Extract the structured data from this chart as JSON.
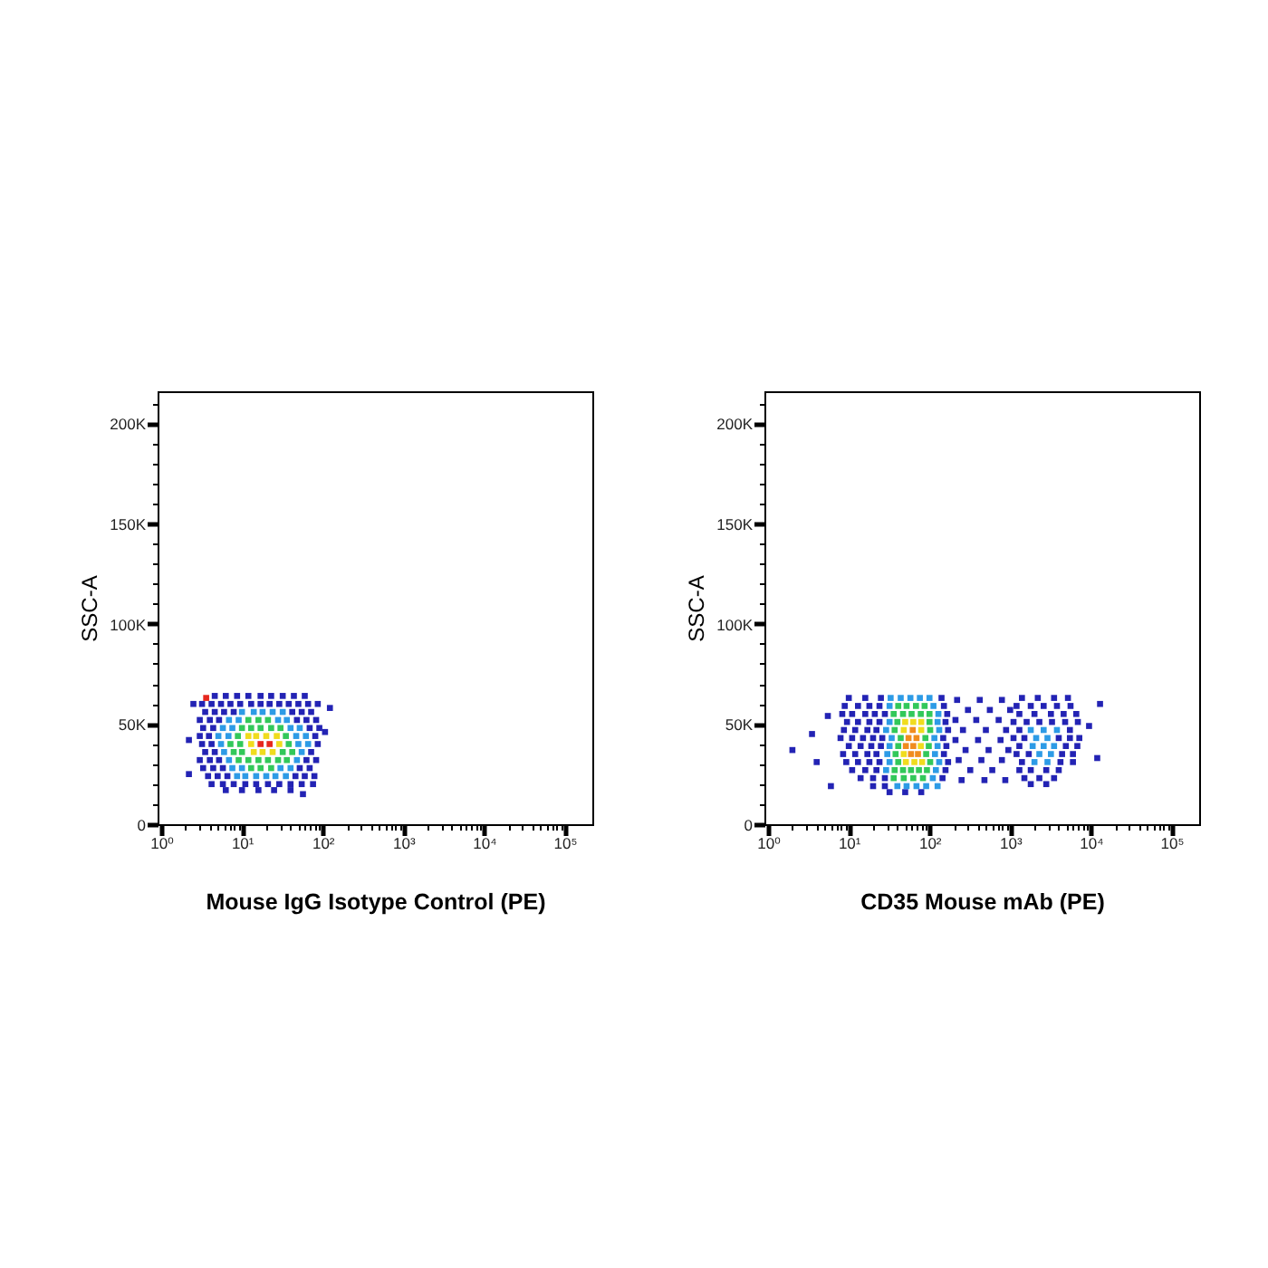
{
  "chart_data": [
    {
      "type": "scatter",
      "xlabel": "Mouse IgG Isotype Control (PE)",
      "ylabel": "SSC-A",
      "log": "x",
      "marker": "square",
      "xlim": [
        0.9,
        220000
      ],
      "ylim": [
        0,
        216000
      ],
      "xticks": [
        {
          "value": 1,
          "label": "10⁰"
        },
        {
          "value": 10,
          "label": "10¹"
        },
        {
          "value": 100,
          "label": "10²"
        },
        {
          "value": 1000,
          "label": "10³"
        },
        {
          "value": 10000,
          "label": "10⁴"
        },
        {
          "value": 100000,
          "label": "10⁵"
        },
        {
          "value": 2,
          "label": null
        },
        {
          "value": 3,
          "label": null
        },
        {
          "value": 4,
          "label": null
        },
        {
          "value": 5,
          "label": null
        },
        {
          "value": 6,
          "label": null
        },
        {
          "value": 7,
          "label": null
        },
        {
          "value": 8,
          "label": null
        },
        {
          "value": 9,
          "label": null
        },
        {
          "value": 20,
          "label": null
        },
        {
          "value": 30,
          "label": null
        },
        {
          "value": 40,
          "label": null
        },
        {
          "value": 50,
          "label": null
        },
        {
          "value": 60,
          "label": null
        },
        {
          "value": 70,
          "label": null
        },
        {
          "value": 80,
          "label": null
        },
        {
          "value": 90,
          "label": null
        },
        {
          "value": 200,
          "label": null
        },
        {
          "value": 300,
          "label": null
        },
        {
          "value": 400,
          "label": null
        },
        {
          "value": 500,
          "label": null
        },
        {
          "value": 600,
          "label": null
        },
        {
          "value": 700,
          "label": null
        },
        {
          "value": 800,
          "label": null
        },
        {
          "value": 900,
          "label": null
        },
        {
          "value": 2000,
          "label": null
        },
        {
          "value": 3000,
          "label": null
        },
        {
          "value": 4000,
          "label": null
        },
        {
          "value": 5000,
          "label": null
        },
        {
          "value": 6000,
          "label": null
        },
        {
          "value": 7000,
          "label": null
        },
        {
          "value": 8000,
          "label": null
        },
        {
          "value": 9000,
          "label": null
        },
        {
          "value": 20000,
          "label": null
        },
        {
          "value": 30000,
          "label": null
        },
        {
          "value": 40000,
          "label": null
        },
        {
          "value": 50000,
          "label": null
        },
        {
          "value": 60000,
          "label": null
        },
        {
          "value": 70000,
          "label": null
        },
        {
          "value": 80000,
          "label": null
        },
        {
          "value": 90000,
          "label": null
        }
      ],
      "yticks": [
        0,
        {
          "value": 50000,
          "label": "50K"
        },
        {
          "value": 100000,
          "label": "100K"
        },
        {
          "value": 150000,
          "label": "150K"
        },
        {
          "value": 200000,
          "label": "200K"
        },
        {
          "value": 10000,
          "label": null
        },
        {
          "value": 20000,
          "label": null
        },
        {
          "value": 30000,
          "label": null
        },
        {
          "value": 40000,
          "label": null
        },
        {
          "value": 60000,
          "label": null
        },
        {
          "value": 70000,
          "label": null
        },
        {
          "value": 80000,
          "label": null
        },
        {
          "value": 90000,
          "label": null
        },
        {
          "value": 110000,
          "label": null
        },
        {
          "value": 120000,
          "label": null
        },
        {
          "value": 130000,
          "label": null
        },
        {
          "value": 140000,
          "label": null
        },
        {
          "value": 160000,
          "label": null
        },
        {
          "value": 170000,
          "label": null
        },
        {
          "value": 180000,
          "label": null
        },
        {
          "value": 190000,
          "label": null
        },
        {
          "value": 210000,
          "label": null
        }
      ],
      "series": [
        {
          "color": "#2323b4",
          "x": [
            4.6,
            6.3,
            8.7,
            12,
            17,
            23,
            32,
            44,
            60,
            3.2,
            4.2,
            5.5,
            7.2,
            9.5,
            13,
            17,
            22,
            29,
            38,
            50,
            66,
            87,
            3.5,
            4.6,
            6.0,
            7.9,
            42,
            55,
            72,
            3.0,
            4.0,
            5.2,
            48,
            63,
            83,
            3.3,
            4.4,
            69,
            91,
            3.0,
            3.9,
            81,
            3.2,
            4.2,
            87,
            3.5,
            4.6,
            72,
            3.0,
            4.0,
            5.2,
            63,
            83,
            3.3,
            4.4,
            5.8,
            52,
            69,
            3.8,
            5.0,
            6.6,
            46,
            60,
            79,
            4.2,
            5.8,
            7.9,
            11,
            15,
            21,
            29,
            40,
            55,
            76,
            6.3,
            10,
            16,
            25,
            40,
            2.2,
            2.2,
            2.5,
            123,
            107,
            57
          ],
          "values": [
            64000,
            64000,
            64000,
            64000,
            64000,
            64000,
            64000,
            64000,
            64000,
            60000,
            60000,
            60000,
            60000,
            60000,
            60000,
            60000,
            60000,
            60000,
            60000,
            60000,
            60000,
            60000,
            56000,
            56000,
            56000,
            56000,
            56000,
            56000,
            56000,
            52000,
            52000,
            52000,
            52000,
            52000,
            52000,
            48000,
            48000,
            48000,
            48000,
            44000,
            44000,
            44000,
            40000,
            40000,
            40000,
            36000,
            36000,
            36000,
            32000,
            32000,
            32000,
            32000,
            32000,
            28000,
            28000,
            28000,
            28000,
            28000,
            24000,
            24000,
            24000,
            24000,
            24000,
            24000,
            20000,
            20000,
            20000,
            20000,
            20000,
            20000,
            20000,
            20000,
            20000,
            20000,
            17000,
            17000,
            17000,
            17000,
            17000,
            25000,
            42000,
            60000,
            58000,
            46000,
            15000
          ]
        },
        {
          "color": "#2d9be6",
          "x": [
            10,
            14,
            18,
            24,
            32,
            6.9,
            9.1,
            28,
            36,
            5.8,
            7.6,
            40,
            52,
            5.1,
            6.8,
            47,
            62,
            5.5,
            50,
            66,
            6.0,
            55,
            6.9,
            48,
            7.6,
            10,
            30,
            40,
            8.7,
            11,
            15,
            20,
            26,
            35
          ],
          "values": [
            56000,
            56000,
            56000,
            56000,
            56000,
            52000,
            52000,
            52000,
            52000,
            48000,
            48000,
            48000,
            48000,
            44000,
            44000,
            44000,
            44000,
            40000,
            40000,
            40000,
            36000,
            36000,
            32000,
            32000,
            28000,
            28000,
            28000,
            28000,
            24000,
            24000,
            24000,
            24000,
            24000,
            24000
          ]
        },
        {
          "color": "#32c85a",
          "x": [
            12,
            16,
            21,
            10,
            13,
            17,
            23,
            30,
            8.9,
            35,
            7.2,
            9.5,
            38,
            7.9,
            10,
            32,
            42,
            9.1,
            12,
            16,
            21,
            28,
            36,
            13,
            17,
            23
          ],
          "values": [
            52000,
            52000,
            52000,
            48000,
            48000,
            48000,
            48000,
            48000,
            44000,
            44000,
            40000,
            40000,
            40000,
            36000,
            36000,
            36000,
            36000,
            32000,
            32000,
            32000,
            32000,
            32000,
            32000,
            28000,
            28000,
            28000
          ]
        },
        {
          "color": "#f0dc1e",
          "x": [
            12,
            15,
            20,
            27,
            13,
            29,
            14,
            18,
            24
          ],
          "values": [
            44000,
            44000,
            44000,
            44000,
            40000,
            40000,
            36000,
            36000,
            36000
          ]
        },
        {
          "color": "#e6281e",
          "x": [
            17,
            22,
            3.6
          ],
          "values": [
            40000,
            40000,
            63000
          ]
        }
      ]
    },
    {
      "type": "scatter",
      "xlabel": "CD35 Mouse mAb (PE)",
      "ylabel": "SSC-A",
      "log": "x",
      "marker": "square",
      "xlim": [
        0.9,
        220000
      ],
      "ylim": [
        0,
        216000
      ],
      "xticks": [
        {
          "value": 1,
          "label": "10⁰"
        },
        {
          "value": 10,
          "label": "10¹"
        },
        {
          "value": 100,
          "label": "10²"
        },
        {
          "value": 1000,
          "label": "10³"
        },
        {
          "value": 10000,
          "label": "10⁴"
        },
        {
          "value": 100000,
          "label": "10⁵"
        },
        {
          "value": 2,
          "label": null
        },
        {
          "value": 3,
          "label": null
        },
        {
          "value": 4,
          "label": null
        },
        {
          "value": 5,
          "label": null
        },
        {
          "value": 6,
          "label": null
        },
        {
          "value": 7,
          "label": null
        },
        {
          "value": 8,
          "label": null
        },
        {
          "value": 9,
          "label": null
        },
        {
          "value": 20,
          "label": null
        },
        {
          "value": 30,
          "label": null
        },
        {
          "value": 40,
          "label": null
        },
        {
          "value": 50,
          "label": null
        },
        {
          "value": 60,
          "label": null
        },
        {
          "value": 70,
          "label": null
        },
        {
          "value": 80,
          "label": null
        },
        {
          "value": 90,
          "label": null
        },
        {
          "value": 200,
          "label": null
        },
        {
          "value": 300,
          "label": null
        },
        {
          "value": 400,
          "label": null
        },
        {
          "value": 500,
          "label": null
        },
        {
          "value": 600,
          "label": null
        },
        {
          "value": 700,
          "label": null
        },
        {
          "value": 800,
          "label": null
        },
        {
          "value": 900,
          "label": null
        },
        {
          "value": 2000,
          "label": null
        },
        {
          "value": 3000,
          "label": null
        },
        {
          "value": 4000,
          "label": null
        },
        {
          "value": 5000,
          "label": null
        },
        {
          "value": 6000,
          "label": null
        },
        {
          "value": 7000,
          "label": null
        },
        {
          "value": 8000,
          "label": null
        },
        {
          "value": 9000,
          "label": null
        },
        {
          "value": 20000,
          "label": null
        },
        {
          "value": 30000,
          "label": null
        },
        {
          "value": 40000,
          "label": null
        },
        {
          "value": 50000,
          "label": null
        },
        {
          "value": 60000,
          "label": null
        },
        {
          "value": 70000,
          "label": null
        },
        {
          "value": 80000,
          "label": null
        },
        {
          "value": 90000,
          "label": null
        }
      ],
      "yticks": [
        0,
        {
          "value": 50000,
          "label": "50K"
        },
        {
          "value": 100000,
          "label": "100K"
        },
        {
          "value": 150000,
          "label": "150K"
        },
        {
          "value": 200000,
          "label": "200K"
        },
        {
          "value": 10000,
          "label": null
        },
        {
          "value": 20000,
          "label": null
        },
        {
          "value": 30000,
          "label": null
        },
        {
          "value": 40000,
          "label": null
        },
        {
          "value": 60000,
          "label": null
        },
        {
          "value": 70000,
          "label": null
        },
        {
          "value": 80000,
          "label": null
        },
        {
          "value": 90000,
          "label": null
        },
        {
          "value": 110000,
          "label": null
        },
        {
          "value": 120000,
          "label": null
        },
        {
          "value": 130000,
          "label": null
        },
        {
          "value": 140000,
          "label": null
        },
        {
          "value": 160000,
          "label": null
        },
        {
          "value": 170000,
          "label": null
        },
        {
          "value": 180000,
          "label": null
        },
        {
          "value": 190000,
          "label": null
        },
        {
          "value": 210000,
          "label": null
        }
      ],
      "series": [
        {
          "color": "#2323b4",
          "x": [
            10,
            16,
            25,
            141,
            1400,
            2200,
            3500,
            5200,
            220,
            420,
            790,
            8.9,
            13,
            18,
            24,
            151,
            1200,
            1800,
            2600,
            3800,
            5600,
            300,
            560,
            1000,
            8.3,
            11,
            16,
            21,
            28,
            166,
            1300,
            2000,
            3200,
            4600,
            6600,
            210,
            380,
            720,
            9.5,
            13,
            18,
            24,
            158,
            1100,
            1600,
            2300,
            3300,
            4800,
            6900,
            8.7,
            12,
            17,
            22,
            170,
            1300,
            5500,
            260,
            500,
            890,
            7.9,
            11,
            15,
            20,
            26,
            148,
            1100,
            1500,
            4000,
            5500,
            7200,
            210,
            400,
            760,
            10,
            14,
            19,
            25,
            162,
            1300,
            4900,
            6800,
            280,
            540,
            950,
            8.5,
            12,
            17,
            22,
            151,
            1200,
            1700,
            4400,
            6000,
            230,
            440,
            790,
            9.3,
            13,
            18,
            24,
            170,
            1400,
            4200,
            6000,
            11,
            16,
            22,
            158,
            1300,
            1800,
            2800,
            4000,
            320,
            600,
            14,
            20,
            28,
            145,
            1500,
            2300,
            3500,
            250,
            480,
            870,
            1800,
            2800,
            20,
            28,
            32,
            50,
            79,
            2.0,
            4.0,
            5.5,
            6.0,
            3.5,
            13000,
            12000,
            9500
          ],
          "values": [
            63000,
            63000,
            63000,
            63000,
            63000,
            63000,
            63000,
            63000,
            62000,
            62000,
            62000,
            59000,
            59000,
            59000,
            59000,
            59000,
            59000,
            59000,
            59000,
            59000,
            59000,
            57000,
            57000,
            57000,
            55000,
            55000,
            55000,
            55000,
            55000,
            55000,
            55000,
            55000,
            55000,
            55000,
            55000,
            52000,
            52000,
            52000,
            51000,
            51000,
            51000,
            51000,
            51000,
            51000,
            51000,
            51000,
            51000,
            51000,
            51000,
            47000,
            47000,
            47000,
            47000,
            47000,
            47000,
            47000,
            47000,
            47000,
            47000,
            43000,
            43000,
            43000,
            43000,
            43000,
            43000,
            43000,
            43000,
            43000,
            43000,
            43000,
            42000,
            42000,
            42000,
            39000,
            39000,
            39000,
            39000,
            39000,
            39000,
            39000,
            39000,
            37000,
            37000,
            37000,
            35000,
            35000,
            35000,
            35000,
            35000,
            35000,
            35000,
            35000,
            35000,
            32000,
            32000,
            32000,
            31000,
            31000,
            31000,
            31000,
            31000,
            31000,
            31000,
            31000,
            27000,
            27000,
            27000,
            27000,
            27000,
            27000,
            27000,
            27000,
            27000,
            27000,
            23000,
            23000,
            23000,
            23000,
            23000,
            23000,
            23000,
            22000,
            22000,
            22000,
            20000,
            20000,
            19000,
            19000,
            16000,
            16000,
            16000,
            37000,
            31000,
            54000,
            19000,
            45000,
            60000,
            33000,
            49000
          ]
        },
        {
          "color": "#2d9be6",
          "x": [
            33,
            44,
            58,
            76,
            100,
            32,
            112,
            129,
            32,
            126,
            29,
            132,
            1800,
            2600,
            3800,
            34,
            115,
            2100,
            2900,
            32,
            126,
            1900,
            2600,
            3500,
            30,
            117,
            2300,
            3200,
            32,
            132,
            2000,
            2900,
            29,
            120,
            110,
            40,
            52,
            69,
            91,
            126
          ],
          "values": [
            63000,
            63000,
            63000,
            63000,
            63000,
            59000,
            59000,
            55000,
            51000,
            51000,
            47000,
            47000,
            47000,
            47000,
            47000,
            43000,
            43000,
            43000,
            43000,
            39000,
            39000,
            39000,
            39000,
            39000,
            35000,
            35000,
            35000,
            35000,
            31000,
            31000,
            31000,
            31000,
            27000,
            27000,
            23000,
            19000,
            19000,
            19000,
            19000,
            19000
          ]
        },
        {
          "color": "#32c85a",
          "x": [
            41,
            52,
            68,
            87,
            36,
            47,
            60,
            78,
            100,
            40,
            100,
            37,
            102,
            44,
            89,
            41,
            98,
            38,
            91,
            41,
            102,
            37,
            47,
            59,
            74,
            93,
            36,
            48,
            63,
            83
          ],
          "values": [
            59000,
            59000,
            59000,
            59000,
            55000,
            55000,
            55000,
            55000,
            55000,
            51000,
            51000,
            47000,
            47000,
            43000,
            43000,
            39000,
            39000,
            35000,
            35000,
            31000,
            31000,
            27000,
            27000,
            27000,
            27000,
            27000,
            23000,
            23000,
            23000,
            23000
          ]
        },
        {
          "color": "#f0dc1e",
          "x": [
            50,
            63,
            79,
            48,
            79,
            78,
            48,
            51,
            65,
            81
          ],
          "values": [
            51000,
            51000,
            51000,
            47000,
            47000,
            39000,
            35000,
            31000,
            31000,
            31000
          ]
        },
        {
          "color": "#f08c1e",
          "x": [
            62,
            55,
            69,
            51,
            63,
            59,
            72
          ],
          "values": [
            47000,
            43000,
            43000,
            39000,
            39000,
            35000,
            35000
          ]
        }
      ]
    }
  ]
}
